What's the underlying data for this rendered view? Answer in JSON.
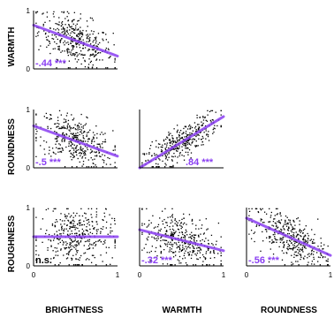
{
  "accent_color": "#8a3ff2",
  "chart_data": {
    "type": "scatter",
    "axis_range": [
      0,
      1
    ],
    "tick_labels": [
      "0",
      "1"
    ],
    "row_labels": [
      "WARMTH",
      "ROUNDNESS",
      "ROUGHNESS"
    ],
    "col_labels": [
      "BRIGHTNESS",
      "WARMTH",
      "ROUNDNESS"
    ],
    "panels": [
      {
        "row": 0,
        "col": 0,
        "x": "BRIGHTNESS",
        "y": "WARMTH",
        "correlation_label": "-.44 ***",
        "r": -0.44,
        "fit": [
          [
            0,
            0.75
          ],
          [
            1,
            0.22
          ]
        ]
      },
      {
        "row": 1,
        "col": 0,
        "x": "BRIGHTNESS",
        "y": "ROUNDNESS",
        "correlation_label": "-.5 ***",
        "r": -0.5,
        "fit": [
          [
            0,
            0.72
          ],
          [
            1,
            0.2
          ]
        ]
      },
      {
        "row": 1,
        "col": 1,
        "x": "WARMTH",
        "y": "ROUNDNESS",
        "correlation_label": ".84 ***",
        "r": 0.84,
        "fit": [
          [
            0,
            0.0
          ],
          [
            1,
            0.88
          ]
        ]
      },
      {
        "row": 2,
        "col": 0,
        "x": "BRIGHTNESS",
        "y": "ROUGHNESS",
        "correlation_label": "n.s.",
        "r": 0.0,
        "fit": [
          [
            0,
            0.5
          ],
          [
            1,
            0.5
          ]
        ]
      },
      {
        "row": 2,
        "col": 1,
        "x": "WARMTH",
        "y": "ROUGHNESS",
        "correlation_label": "-.32 ***",
        "r": -0.32,
        "fit": [
          [
            0,
            0.62
          ],
          [
            1,
            0.26
          ]
        ]
      },
      {
        "row": 2,
        "col": 2,
        "x": "ROUNDNESS",
        "y": "ROUGHNESS",
        "correlation_label": "-.56 ***",
        "r": -0.56,
        "fit": [
          [
            0,
            0.82
          ],
          [
            1,
            0.18
          ]
        ]
      }
    ]
  }
}
